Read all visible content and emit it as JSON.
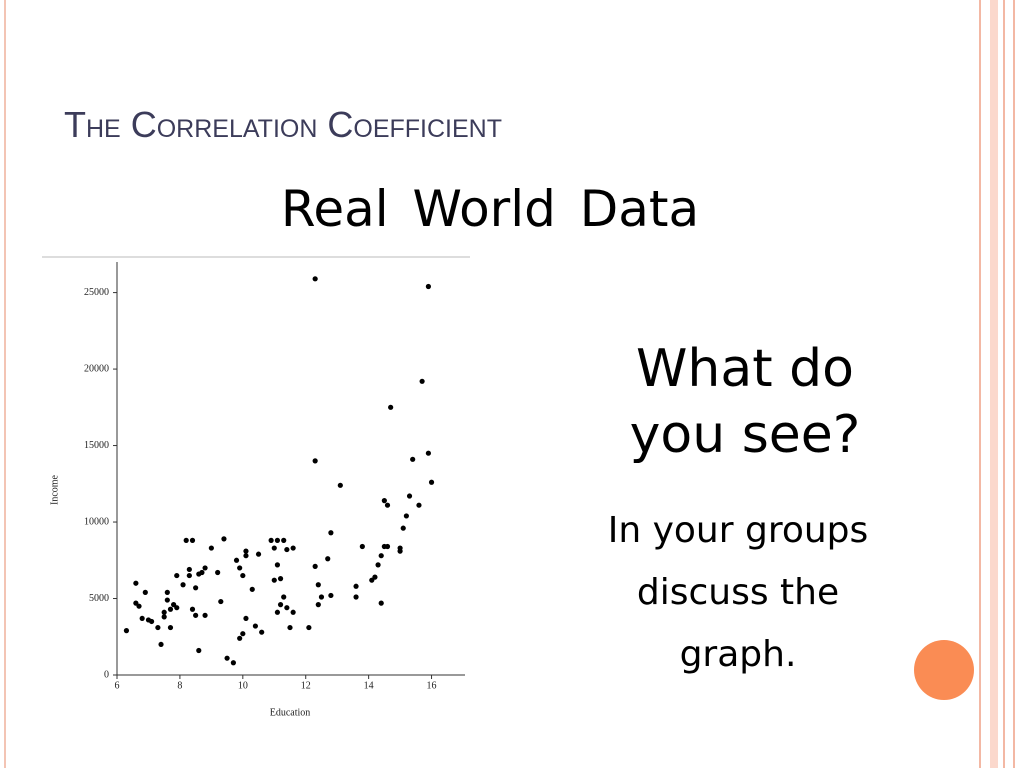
{
  "title": "The Correlation Coefficient",
  "heading": "Real World Data",
  "question": "What do you see?",
  "instruction": "In your groups discuss the graph.",
  "chart_data": {
    "type": "scatter",
    "x_label": "Education",
    "y_label": "Income",
    "color": "#000000",
    "xlim": [
      6,
      17
    ],
    "ylim": [
      0,
      27000
    ],
    "xticks": [
      6,
      8,
      10,
      12,
      14,
      16
    ],
    "yticks": [
      0,
      5000,
      10000,
      15000,
      20000,
      25000
    ],
    "x": [
      6.3,
      6.6,
      6.6,
      6.7,
      6.8,
      6.9,
      7.0,
      7.1,
      7.3,
      7.4,
      7.5,
      7.5,
      7.6,
      7.6,
      7.7,
      7.7,
      7.8,
      7.9,
      7.9,
      8.1,
      8.2,
      8.3,
      8.3,
      8.4,
      8.4,
      8.5,
      8.5,
      8.6,
      8.6,
      8.7,
      8.8,
      8.8,
      9.0,
      9.2,
      9.3,
      9.4,
      9.5,
      9.7,
      9.8,
      9.9,
      9.9,
      10.0,
      10.0,
      10.1,
      10.1,
      10.1,
      10.3,
      10.4,
      10.5,
      10.6,
      10.9,
      11.0,
      11.0,
      11.1,
      11.1,
      11.1,
      11.2,
      11.2,
      11.3,
      11.3,
      11.4,
      11.4,
      11.5,
      11.6,
      11.6,
      12.1,
      12.3,
      12.3,
      12.3,
      12.4,
      12.4,
      12.5,
      12.7,
      12.8,
      12.8,
      13.1,
      13.6,
      13.6,
      13.8,
      14.1,
      14.2,
      14.3,
      14.4,
      14.5,
      14.4,
      14.5,
      14.6,
      14.6,
      14.7,
      15.0,
      15.0,
      15.1,
      15.2,
      15.3,
      15.4,
      15.6,
      15.7,
      15.9,
      15.9,
      16.0
    ],
    "y": [
      2900,
      6000,
      4700,
      4500,
      3700,
      5400,
      3600,
      3500,
      3100,
      2000,
      4100,
      3800,
      5400,
      4900,
      3100,
      4300,
      4600,
      6500,
      4400,
      5900,
      8800,
      6900,
      6500,
      8800,
      4300,
      3900,
      5700,
      1600,
      6600,
      6700,
      3900,
      7000,
      8300,
      6700,
      4800,
      8900,
      1100,
      800,
      7500,
      2400,
      7000,
      6500,
      2700,
      3700,
      8100,
      7800,
      5600,
      3200,
      7900,
      2800,
      8800,
      8300,
      6200,
      8800,
      4100,
      7200,
      6300,
      4600,
      5100,
      8800,
      4400,
      8200,
      3100,
      8300,
      4100,
      3100,
      25900,
      14000,
      7100,
      5900,
      4600,
      5100,
      7600,
      9300,
      5200,
      12400,
      5800,
      5100,
      8400,
      6200,
      6400,
      7200,
      7800,
      8400,
      4700,
      11400,
      11100,
      8400,
      17500,
      8300,
      8100,
      9600,
      10400,
      11700,
      14100,
      11100,
      19200,
      14500,
      25400,
      12600
    ]
  }
}
